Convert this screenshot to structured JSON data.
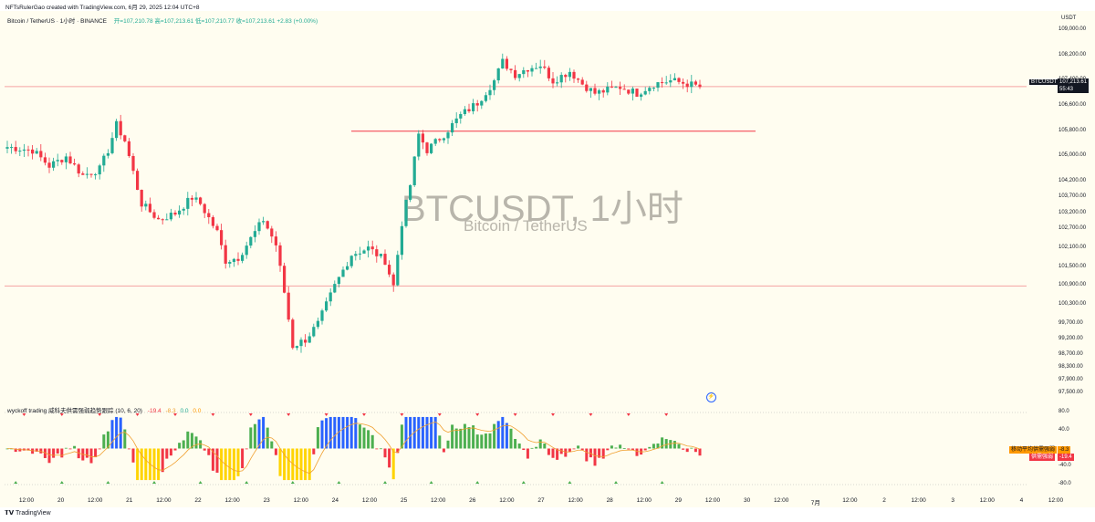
{
  "header": {
    "credit": "NFTsRulerGao created with TradingView.com, 6月 29, 2025 12:04 UTC+8",
    "symbol_line": "Bitcoin / TetherUS · 1小时 · BINANCE",
    "ohlc": "开=107,210.78  高=107,213.61  低=107,210.77  收=107,213.61  +2.83 (+0.00%)",
    "unit": "USDT"
  },
  "watermark": {
    "title": "BTCUSDT, 1小时",
    "subtitle": "Bitcoin / TetherUS"
  },
  "price_tags": {
    "symbol": "BTCUSDT",
    "price": "107,213.61",
    "countdown": "55:43"
  },
  "indicator": {
    "label": "wyckoff trading 威科夫供需强弱趋势跟踪 (10, 6, 20)",
    "values": [
      "-19.4",
      "-8.3",
      "0.0",
      "0.0"
    ],
    "tag1_label": "移动平均供需强弱",
    "tag1_value": "-8.3",
    "tag2_label": "供需强弱",
    "tag2_value": "-19.4"
  },
  "footer": {
    "brand": "TradingView"
  },
  "colors": {
    "up": "#22ab94",
    "down": "#f23645",
    "bg": "#fffdf0",
    "hist_up": "#4caf50",
    "hist_down": "#f23645",
    "hist_yellow": "#ffd400",
    "hist_blue": "#2962ff"
  },
  "chart_data": {
    "type": "candlestick",
    "price_axis_labels": [
      "109,000.00",
      "108,200.00",
      "107,400.00",
      "106,600.00",
      "105,800.00",
      "105,000.00",
      "104,200.00",
      "103,700.00",
      "103,200.00",
      "102,700.00",
      "102,100.00",
      "101,500.00",
      "100,900.00",
      "100,300.00",
      "99,700.00",
      "99,200.00",
      "98,700.00",
      "98,300.00",
      "97,900.00",
      "97,500.00"
    ],
    "indicator_axis_labels": [
      "80.0",
      "40.0",
      "-40.0",
      "-80.0"
    ],
    "x_labels": [
      "12:00",
      "20",
      "12:00",
      "21",
      "12:00",
      "22",
      "12:00",
      "23",
      "12:00",
      "24",
      "12:00",
      "25",
      "12:00",
      "26",
      "12:00",
      "27",
      "12:00",
      "28",
      "12:00",
      "29",
      "12:00",
      "30",
      "12:00",
      "7月",
      "12:00",
      "2",
      "12:00",
      "3",
      "12:00",
      "4",
      "12:00"
    ],
    "ylim": [
      97500,
      109000
    ],
    "horizontal_lines": [
      107213.61,
      105800,
      100900
    ],
    "close_path_anchors": [
      [
        0,
        105300
      ],
      [
        6,
        105200
      ],
      [
        10,
        104700
      ],
      [
        14,
        105000
      ],
      [
        18,
        104400
      ],
      [
        22,
        104600
      ],
      [
        24,
        105200
      ],
      [
        26,
        106000
      ],
      [
        28,
        105500
      ],
      [
        32,
        103500
      ],
      [
        36,
        103000
      ],
      [
        40,
        103200
      ],
      [
        44,
        103700
      ],
      [
        46,
        103500
      ],
      [
        50,
        102600
      ],
      [
        52,
        101700
      ],
      [
        55,
        101800
      ],
      [
        58,
        102400
      ],
      [
        61,
        103000
      ],
      [
        64,
        102200
      ],
      [
        66,
        100700
      ],
      [
        68,
        99000
      ],
      [
        71,
        99200
      ],
      [
        74,
        99700
      ],
      [
        78,
        100900
      ],
      [
        82,
        101900
      ],
      [
        86,
        102100
      ],
      [
        90,
        101700
      ],
      [
        92,
        100900
      ],
      [
        94,
        102900
      ],
      [
        96,
        104100
      ],
      [
        98,
        105700
      ],
      [
        100,
        105200
      ],
      [
        104,
        105700
      ],
      [
        108,
        106300
      ],
      [
        112,
        106700
      ],
      [
        116,
        107400
      ],
      [
        118,
        108000
      ],
      [
        121,
        107600
      ],
      [
        124,
        107800
      ],
      [
        127,
        107900
      ],
      [
        130,
        107400
      ],
      [
        134,
        107700
      ],
      [
        137,
        107300
      ],
      [
        140,
        107000
      ],
      [
        143,
        107100
      ],
      [
        146,
        107200
      ],
      [
        150,
        107000
      ],
      [
        154,
        107300
      ],
      [
        158,
        107400
      ],
      [
        162,
        107300
      ],
      [
        165,
        107200
      ]
    ],
    "total_candles": 166,
    "indicator_range": [
      -80,
      80
    ]
  }
}
